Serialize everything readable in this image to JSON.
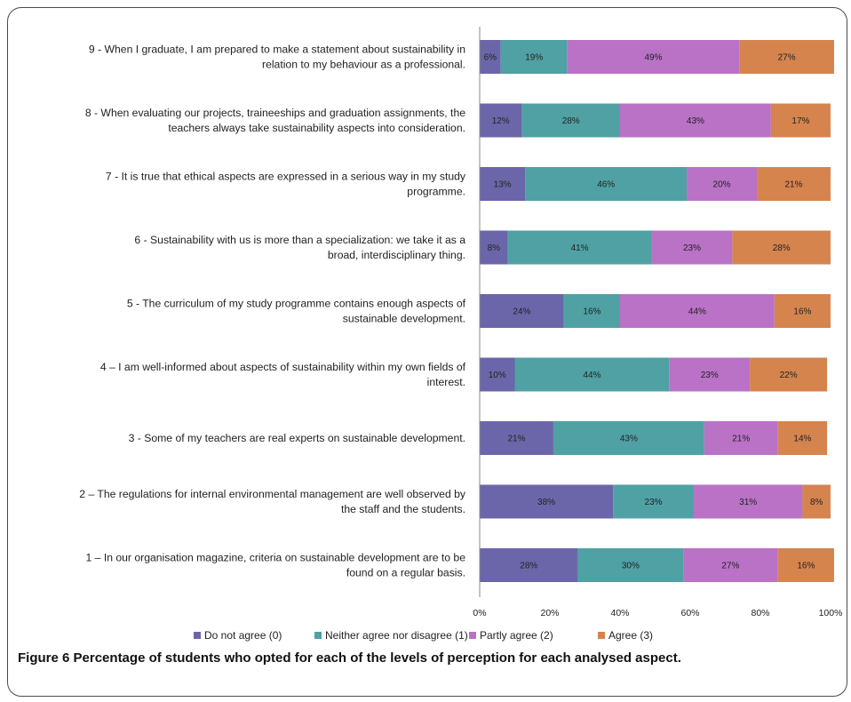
{
  "figure": {
    "caption_label": "Figure 6",
    "caption_text": "Percentage of students who opted for each of the levels of perception for each analysed aspect."
  },
  "chart_data": {
    "type": "bar",
    "orientation": "horizontal",
    "stacked": "percent",
    "categories": [
      [
        "9 - When I graduate, I am prepared to make a statement about sustainability in",
        "relation to my behaviour as a professional."
      ],
      [
        "8 - When evaluating our projects, traineeships and graduation assignments, the",
        "teachers always take sustainability aspects into consideration."
      ],
      [
        "7 - It is true that ethical aspects are expressed in a serious way in my study",
        "programme."
      ],
      [
        "6 - Sustainability with us is more than a specialization: we take it as a",
        "broad, interdisciplinary thing."
      ],
      [
        "5 - The curriculum of my study programme contains enough aspects of",
        "sustainable development."
      ],
      [
        "4 – I am well-informed about aspects of sustainability within my own fields of",
        "interest."
      ],
      [
        "3 - Some of my teachers are real experts on sustainable development."
      ],
      [
        "2 – The regulations for  internal environmental management are well observed by",
        "the staff and the students."
      ],
      [
        "1 – In our organisation magazine, criteria on sustainable development are to be",
        "found on a regular basis."
      ]
    ],
    "series": [
      {
        "name": "Do not agree (0)",
        "color": "#6b66a9",
        "values": [
          6,
          12,
          13,
          8,
          24,
          10,
          21,
          38,
          28
        ]
      },
      {
        "name": "Neither agree nor disagree (1)",
        "color": "#4fa1a4",
        "values": [
          19,
          28,
          46,
          41,
          16,
          44,
          43,
          23,
          30
        ]
      },
      {
        "name": "Partly agree (2)",
        "color": "#b972c6",
        "values": [
          49,
          43,
          20,
          23,
          44,
          23,
          21,
          31,
          27
        ]
      },
      {
        "name": "Agree (3)",
        "color": "#d5844e",
        "values": [
          27,
          17,
          21,
          28,
          16,
          22,
          14,
          8,
          16
        ]
      }
    ],
    "data_labels": [
      [
        "6%",
        "19%",
        "49%",
        "27%"
      ],
      [
        "12%",
        "28%",
        "43%",
        "17%"
      ],
      [
        "13%",
        "46%",
        "20%",
        "21%"
      ],
      [
        "8%",
        "41%",
        "23%",
        "28%"
      ],
      [
        "24%",
        "16%",
        "44%",
        "16%"
      ],
      [
        "10%",
        "44%",
        "23%",
        "22%"
      ],
      [
        "21%",
        "43%",
        "21%",
        "14%"
      ],
      [
        "38%",
        "23%",
        "31%",
        "8%"
      ],
      [
        "28%",
        "30%",
        "27%",
        "16%"
      ]
    ],
    "x_ticks": [
      "0%",
      "20%",
      "40%",
      "60%",
      "80%",
      "100%"
    ],
    "xlim": [
      0,
      100
    ],
    "grid": false,
    "legend_position": "bottom"
  }
}
